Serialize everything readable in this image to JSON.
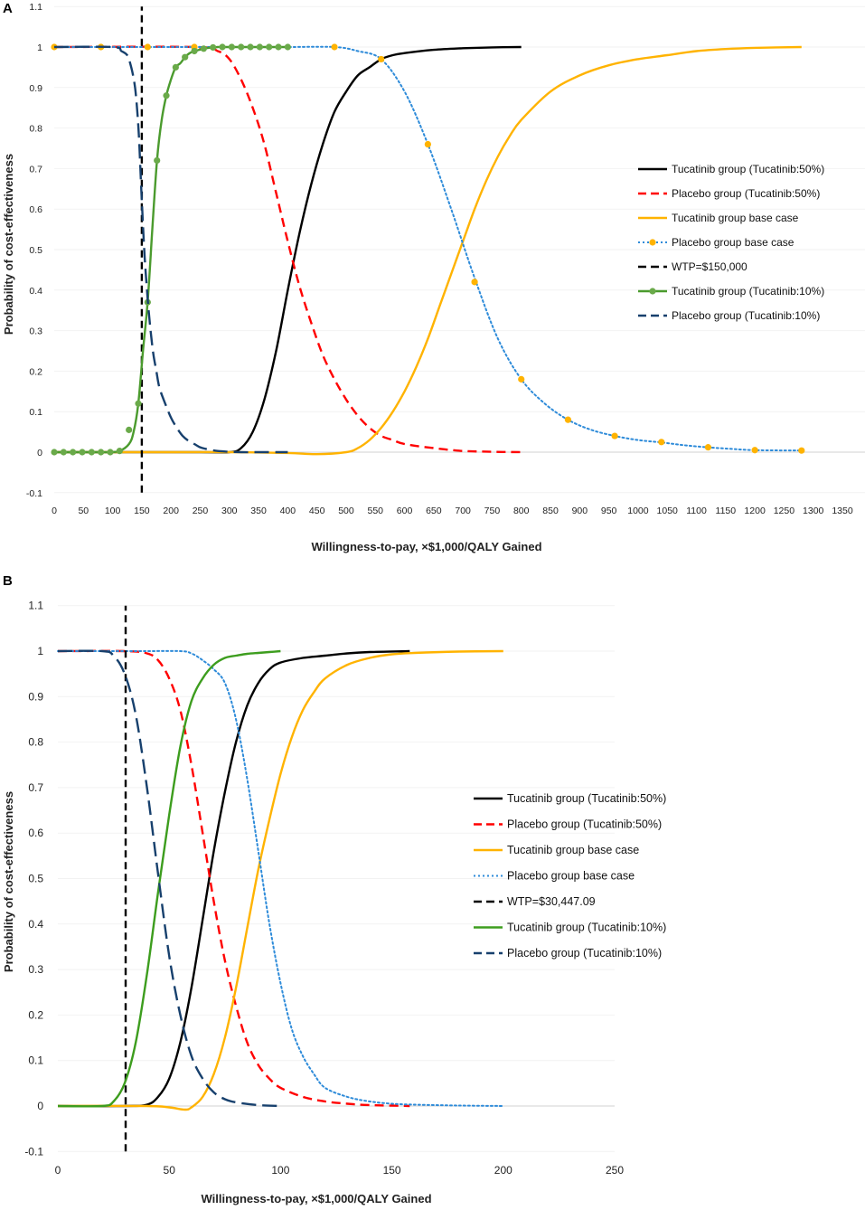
{
  "chart_data": [
    {
      "panel": "A",
      "type": "line",
      "xlabel": "Willingness-to-pay, ×$1,000/QALY Gained",
      "ylabel": "Probability of cost-effectiveness",
      "xlim": [
        0,
        1350
      ],
      "ylim": [
        -0.1,
        1.1
      ],
      "xticks": [
        0,
        50,
        100,
        150,
        200,
        250,
        300,
        350,
        400,
        450,
        500,
        550,
        600,
        650,
        700,
        750,
        800,
        850,
        900,
        950,
        1000,
        1050,
        1100,
        1150,
        1200,
        1250,
        1300,
        1350
      ],
      "xtick_labels": [
        "0",
        "50",
        "100",
        "150",
        "200",
        "250",
        "300",
        "350",
        "400",
        "450",
        "500",
        "550",
        "600",
        "650",
        "700",
        "750",
        "800",
        "850",
        "900",
        "950",
        "1000",
        "1050",
        "1100",
        "1150",
        "1200",
        "1250",
        "1300",
        "1350"
      ],
      "yticks": [
        -0.1,
        0,
        0.1,
        0.2,
        0.3,
        0.4,
        0.5,
        0.6,
        0.7,
        0.8,
        0.9,
        1,
        1.1
      ],
      "ytick_labels": [
        "-0.1",
        "0",
        "0.1",
        "0.2",
        "0.3",
        "0.4",
        "0.5",
        "0.6",
        "0.7",
        "0.8",
        "0.9",
        "1",
        "1.1"
      ],
      "legend_position": "right",
      "series": [
        {
          "name": "Tucatinib group (Tucatinib:50%)",
          "style": "solid",
          "color": "#000000",
          "marker": "none",
          "x": [
            0,
            250,
            300,
            320,
            340,
            360,
            380,
            400,
            420,
            440,
            460,
            480,
            500,
            520,
            540,
            560,
            580,
            600,
            650,
            700,
            750,
            800
          ],
          "y": [
            0,
            0,
            0,
            0.01,
            0.05,
            0.13,
            0.25,
            0.4,
            0.54,
            0.66,
            0.76,
            0.84,
            0.89,
            0.93,
            0.95,
            0.97,
            0.98,
            0.985,
            0.993,
            0.997,
            0.999,
            1
          ]
        },
        {
          "name": "Placebo group (Tucatinib:50%)",
          "style": "dashed",
          "color": "#ff0000",
          "marker": "none",
          "x": [
            0,
            240,
            280,
            300,
            320,
            340,
            360,
            380,
            400,
            420,
            440,
            460,
            480,
            500,
            520,
            540,
            560,
            580,
            600,
            650,
            700,
            750,
            800
          ],
          "y": [
            1,
            1,
            0.99,
            0.97,
            0.92,
            0.85,
            0.76,
            0.64,
            0.52,
            0.41,
            0.32,
            0.24,
            0.18,
            0.13,
            0.09,
            0.06,
            0.04,
            0.03,
            0.02,
            0.01,
            0.003,
            0.001,
            0
          ]
        },
        {
          "name": "Tucatinib group base case",
          "style": "solid",
          "color": "#ffb300",
          "marker": "none",
          "x": [
            0,
            200,
            300,
            400,
            450,
            500,
            520,
            540,
            560,
            580,
            600,
            620,
            640,
            660,
            680,
            700,
            720,
            740,
            760,
            780,
            800,
            850,
            900,
            950,
            1000,
            1050,
            1100,
            1150,
            1200,
            1280
          ],
          "y": [
            0,
            0,
            0,
            -0.002,
            -0.005,
            0,
            0.01,
            0.03,
            0.06,
            0.1,
            0.15,
            0.21,
            0.28,
            0.36,
            0.44,
            0.52,
            0.6,
            0.67,
            0.73,
            0.78,
            0.82,
            0.89,
            0.93,
            0.955,
            0.97,
            0.98,
            0.99,
            0.995,
            0.998,
            1
          ]
        },
        {
          "name": "Placebo group base case",
          "style": "dotted",
          "color": "#2e8bd9",
          "marker": "dot",
          "x": [
            0,
            80,
            160,
            240,
            320,
            400,
            480,
            520,
            560,
            600,
            640,
            680,
            720,
            760,
            800,
            840,
            880,
            920,
            960,
            1000,
            1040,
            1080,
            1120,
            1160,
            1200,
            1280
          ],
          "y": [
            1,
            1,
            1,
            1,
            1,
            1,
            1,
            0.99,
            0.97,
            0.89,
            0.76,
            0.6,
            0.43,
            0.28,
            0.18,
            0.12,
            0.08,
            0.055,
            0.04,
            0.03,
            0.024,
            0.017,
            0.012,
            0.008,
            0.005,
            0.004
          ],
          "marker_x": [
            0,
            80,
            160,
            240,
            480,
            560,
            640,
            720,
            800,
            880,
            960,
            1040,
            1120,
            1200,
            1280
          ],
          "marker_y": [
            1,
            1,
            1,
            1,
            1,
            0.97,
            0.76,
            0.42,
            0.18,
            0.08,
            0.04,
            0.025,
            0.012,
            0.005,
            0.004
          ],
          "marker_color": "#ffb300"
        },
        {
          "name": "WTP=$150,000",
          "style": "dashed-vertical",
          "color": "#000000",
          "marker": "none",
          "x": [
            150,
            150
          ],
          "y": [
            -0.1,
            1.1
          ]
        },
        {
          "name": "Tucatinib group (Tucatinib:10%)",
          "style": "solid",
          "color": "#4b9b2e",
          "marker": "dot",
          "x": [
            0,
            16,
            32,
            48,
            64,
            80,
            96,
            112,
            128,
            136,
            144,
            152,
            160,
            168,
            176,
            184,
            192,
            200,
            208,
            216,
            224,
            232,
            240,
            248,
            256,
            264,
            272,
            280,
            288,
            296,
            304,
            320,
            336,
            352,
            368,
            384,
            400
          ],
          "y": [
            0,
            0,
            0,
            0,
            0,
            0,
            0,
            0.003,
            0.02,
            0.05,
            0.12,
            0.25,
            0.37,
            0.55,
            0.72,
            0.82,
            0.88,
            0.92,
            0.95,
            0.96,
            0.975,
            0.985,
            0.99,
            0.993,
            0.996,
            0.998,
            0.999,
            1,
            1,
            1,
            1,
            1,
            1,
            1,
            1,
            1,
            1
          ],
          "marker_x": [
            0,
            16,
            32,
            48,
            64,
            80,
            96,
            112,
            128,
            144,
            160,
            176,
            192,
            208,
            224,
            240,
            256,
            272,
            288,
            304,
            320,
            336,
            352,
            368,
            384,
            400
          ],
          "marker_y": [
            0,
            0,
            0,
            0,
            0,
            0,
            0,
            0.003,
            0.055,
            0.12,
            0.37,
            0.72,
            0.88,
            0.95,
            0.975,
            0.99,
            0.996,
            0.999,
            1,
            1,
            1,
            1,
            1,
            1,
            1,
            1
          ],
          "marker_color": "#6aaa4a"
        },
        {
          "name": "Placebo group (Tucatinib:10%)",
          "style": "long-dashed",
          "color": "#17406d",
          "marker": "none",
          "x": [
            0,
            100,
            115,
            125,
            130,
            135,
            140,
            145,
            150,
            155,
            160,
            165,
            170,
            175,
            180,
            190,
            200,
            210,
            220,
            230,
            240,
            250,
            260,
            270,
            280,
            300,
            320,
            350,
            400
          ],
          "y": [
            1,
            1,
            0.99,
            0.98,
            0.96,
            0.93,
            0.88,
            0.78,
            0.62,
            0.48,
            0.38,
            0.3,
            0.24,
            0.2,
            0.16,
            0.12,
            0.085,
            0.06,
            0.04,
            0.028,
            0.02,
            0.012,
            0.008,
            0.005,
            0.003,
            0.001,
            0,
            0,
            0
          ]
        }
      ]
    },
    {
      "panel": "B",
      "type": "line",
      "xlabel": "Willingness-to-pay, ×$1,000/QALY Gained",
      "ylabel": "Probability of cost-effectiveness",
      "xlim": [
        0,
        250
      ],
      "ylim": [
        -0.1,
        1.1
      ],
      "xticks": [
        0,
        50,
        100,
        150,
        200,
        250
      ],
      "xtick_labels": [
        "0",
        "50",
        "100",
        "150",
        "200",
        "250"
      ],
      "yticks": [
        -0.1,
        0,
        0.1,
        0.2,
        0.3,
        0.4,
        0.5,
        0.6,
        0.7,
        0.8,
        0.9,
        1,
        1.1
      ],
      "ytick_labels": [
        "-0.1",
        "0",
        "0.1",
        "0.2",
        "0.3",
        "0.4",
        "0.5",
        "0.6",
        "0.7",
        "0.8",
        "0.9",
        "1",
        "1.1"
      ],
      "legend_position": "right",
      "series": [
        {
          "name": "Tucatinib group (Tucatinib:50%)",
          "style": "solid",
          "color": "#000000",
          "marker": "none",
          "x": [
            0,
            30,
            40,
            45,
            50,
            55,
            60,
            65,
            70,
            75,
            80,
            85,
            90,
            95,
            100,
            110,
            120,
            130,
            140,
            158
          ],
          "y": [
            0,
            0,
            0.003,
            0.02,
            0.06,
            0.14,
            0.26,
            0.41,
            0.56,
            0.69,
            0.8,
            0.88,
            0.93,
            0.96,
            0.975,
            0.985,
            0.99,
            0.995,
            0.998,
            1
          ]
        },
        {
          "name": "Placebo group (Tucatinib:50%)",
          "style": "dashed",
          "color": "#ff0000",
          "marker": "none",
          "x": [
            0,
            30,
            40,
            45,
            50,
            55,
            60,
            65,
            70,
            75,
            80,
            85,
            90,
            95,
            100,
            110,
            120,
            130,
            140,
            158
          ],
          "y": [
            1,
            1,
            0.995,
            0.98,
            0.94,
            0.87,
            0.75,
            0.6,
            0.45,
            0.32,
            0.22,
            0.14,
            0.09,
            0.06,
            0.04,
            0.02,
            0.01,
            0.005,
            0.002,
            0
          ]
        },
        {
          "name": "Tucatinib group base case",
          "style": "solid",
          "color": "#ffb300",
          "marker": "none",
          "x": [
            0,
            40,
            50,
            57,
            60,
            65,
            70,
            75,
            80,
            85,
            90,
            95,
            100,
            105,
            110,
            115,
            120,
            130,
            140,
            150,
            160,
            180,
            200
          ],
          "y": [
            0,
            0,
            -0.003,
            -0.008,
            -0.003,
            0.02,
            0.07,
            0.15,
            0.26,
            0.39,
            0.52,
            0.63,
            0.73,
            0.81,
            0.87,
            0.91,
            0.94,
            0.97,
            0.985,
            0.993,
            0.996,
            0.999,
            1
          ]
        },
        {
          "name": "Placebo group base case",
          "style": "dotted",
          "color": "#2e8bd9",
          "marker": "none",
          "x": [
            0,
            20,
            40,
            55,
            60,
            65,
            70,
            75,
            80,
            85,
            90,
            95,
            100,
            105,
            110,
            115,
            120,
            130,
            140,
            150,
            160,
            180,
            200
          ],
          "y": [
            1,
            1,
            1,
            1,
            0.995,
            0.98,
            0.96,
            0.93,
            0.85,
            0.72,
            0.56,
            0.4,
            0.27,
            0.17,
            0.11,
            0.07,
            0.04,
            0.02,
            0.01,
            0.005,
            0.003,
            0.001,
            0
          ]
        },
        {
          "name": "WTP=$30,447.09",
          "style": "dashed-vertical",
          "color": "#000000",
          "marker": "none",
          "x": [
            30.447,
            30.447
          ],
          "y": [
            -0.1,
            1.1
          ]
        },
        {
          "name": "Tucatinib group (Tucatinib:10%)",
          "style": "solid",
          "color": "#3d9d1e",
          "marker": "none",
          "x": [
            0,
            20,
            25,
            30,
            35,
            40,
            45,
            50,
            55,
            60,
            65,
            70,
            75,
            80,
            85,
            90,
            95,
            100
          ],
          "y": [
            0,
            0,
            0.01,
            0.05,
            0.14,
            0.29,
            0.47,
            0.64,
            0.79,
            0.89,
            0.94,
            0.97,
            0.985,
            0.99,
            0.994,
            0.996,
            0.998,
            1
          ]
        },
        {
          "name": "Placebo group (Tucatinib:10%)",
          "style": "long-dashed",
          "color": "#17406d",
          "marker": "none",
          "x": [
            0,
            20,
            25,
            30,
            35,
            40,
            45,
            50,
            55,
            60,
            65,
            70,
            75,
            80,
            90,
            100
          ],
          "y": [
            1,
            1,
            0.99,
            0.95,
            0.86,
            0.7,
            0.51,
            0.33,
            0.2,
            0.11,
            0.06,
            0.03,
            0.015,
            0.008,
            0.002,
            0
          ]
        }
      ]
    }
  ]
}
